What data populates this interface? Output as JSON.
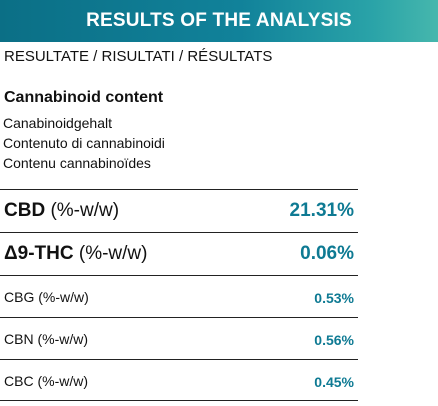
{
  "header": {
    "title": "RESULTS OF THE ANALYSIS",
    "subtitle": "RESULTATE / RISULTATI / RÉSULTATS"
  },
  "section": {
    "heading": "Cannabinoid content",
    "translations": [
      "Canabinoidgehalt",
      "Contenuto di cannabinoidi",
      "Contenu cannabinoïdes"
    ]
  },
  "results": [
    {
      "compound": "CBD",
      "unit": " (%-w/w)",
      "value": "21.31%"
    },
    {
      "compound": "Δ9-THC",
      "unit": " (%-w/w)",
      "value": "0.06%"
    },
    {
      "compound": "CBG",
      "unit": " (%-w/w)",
      "value": "0.53%"
    },
    {
      "compound": "CBN",
      "unit": " (%-w/w)",
      "value": "0.56%"
    },
    {
      "compound": "CBC",
      "unit": " (%-w/w)",
      "value": "0.45%"
    }
  ],
  "colors": {
    "header_start": "#0b6f86",
    "header_end": "#46b7ad",
    "value_text": "#0e7a93"
  }
}
